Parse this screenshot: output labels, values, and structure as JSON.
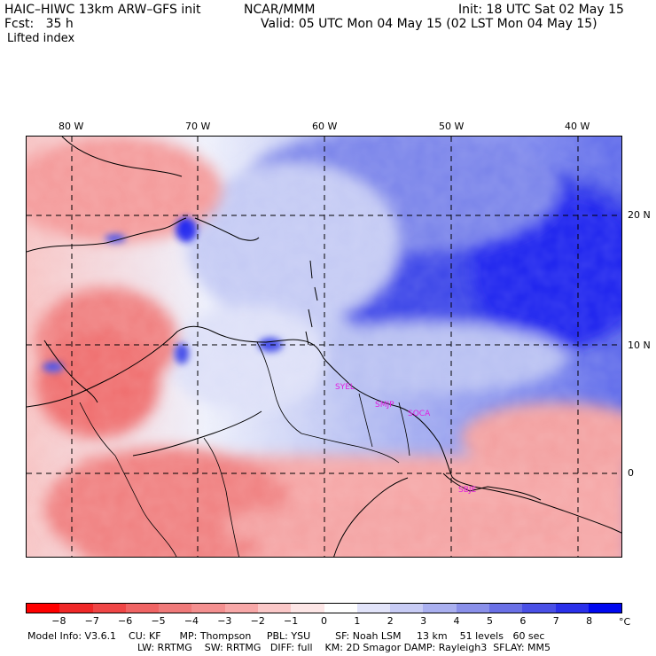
{
  "header": {
    "model": "HAIC–HIWC 13km ARW–GFS init",
    "org": "NCAR/MMM",
    "init": "Init: 18 UTC Sat 02 May 15",
    "fcst": "Fcst:   35 h",
    "valid": "Valid: 05 UTC Mon 04 May 15 (02 LST Mon 04 May 15)",
    "field": "Lifted index"
  },
  "map": {
    "lon_labels": [
      "80 W",
      "70 W",
      "60 W",
      "50 W",
      "40 W"
    ],
    "lat_labels": [
      "20 N",
      "10 N",
      "0"
    ],
    "stations": [
      "SYEL",
      "SMJP",
      "SOCA",
      "SBJE"
    ]
  },
  "colorbar": {
    "ticks": [
      "−8",
      "−7",
      "−6",
      "−5",
      "−4",
      "−3",
      "−2",
      "−1",
      "0",
      "1",
      "2",
      "3",
      "4",
      "5",
      "6",
      "7",
      "8"
    ],
    "unit": "°C",
    "colors": [
      "#ff0000",
      "#f02828",
      "#f04646",
      "#f06464",
      "#f07a7a",
      "#f49090",
      "#f8a8a8",
      "#fbc8c8",
      "#fde6e6",
      "#ffffff",
      "#e2e4fa",
      "#c8ccf5",
      "#aab0f0",
      "#8a90ea",
      "#6a70e6",
      "#4a50e6",
      "#2a30ea",
      "#0008f0"
    ]
  },
  "model_info": {
    "line1": "Model Info: V3.6.1    CU: KF      MP: Thompson     PBL: YSU        SF: Noah LSM     13 km    51 levels   60 sec",
    "line2": "LW: RRTMG    SW: RRTMG   DIFF: full    KM: 2D Smagor DAMP: Rayleigh3  SFLAY: MM5"
  }
}
